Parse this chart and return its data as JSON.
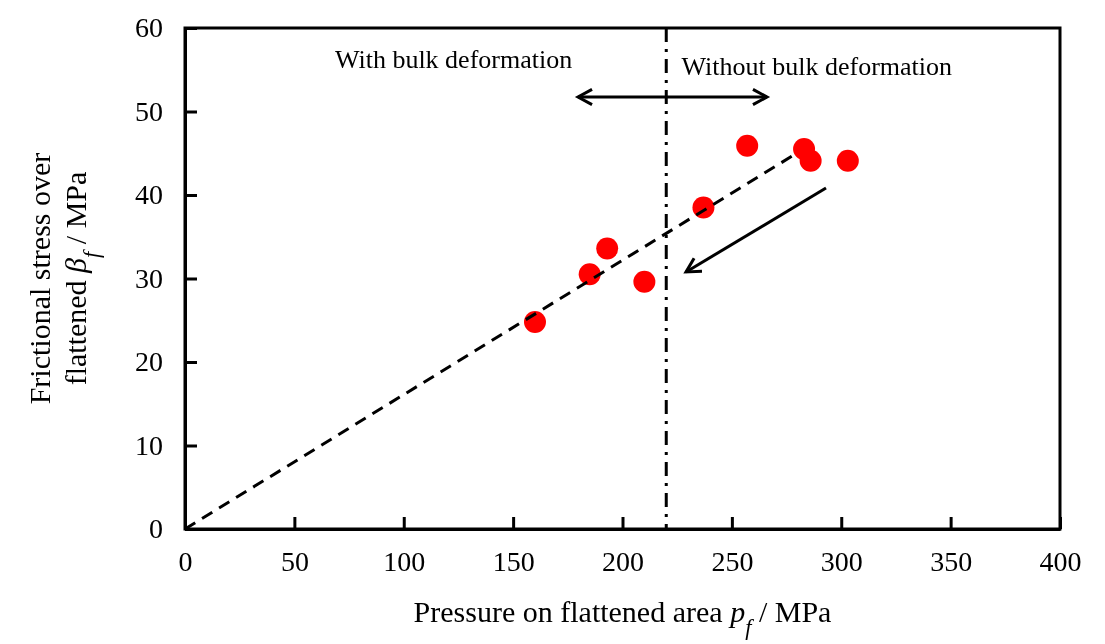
{
  "chart_data": {
    "type": "scatter",
    "xlabel": "Pressure on flattened area p$_{f}$ / MPa",
    "ylabel": "Frictional stress over flattened β$_{f}$ / MPa",
    "xlim": [
      0,
      400
    ],
    "xticks": [
      0,
      50,
      100,
      150,
      200,
      250,
      300,
      350,
      400
    ],
    "ylim": [
      0,
      60
    ],
    "yticks": [
      0,
      10,
      20,
      30,
      40,
      50,
      60
    ],
    "grid": false,
    "marker": "circle",
    "series": [
      {
        "color": "#ff0000",
        "x": [
          160,
          185,
          193,
          210,
          237,
          257,
          283,
          286,
          303
        ],
        "values": [
          24.8,
          30.5,
          33.6,
          29.6,
          38.5,
          45.9,
          45.5,
          44.1,
          44.1
        ]
      },
      {
        "type": "line",
        "color": "#000000",
        "line_style": "dashed",
        "marker": "none",
        "x": [
          0,
          279
        ],
        "values": [
          0,
          44.9
        ]
      }
    ],
    "ref_lines": [
      {
        "axis": "x",
        "value": 220,
        "color": "#000000",
        "line_style": "dashdot"
      }
    ],
    "annotations": [
      "With bulk deformation",
      "Without bulk deformation"
    ]
  }
}
